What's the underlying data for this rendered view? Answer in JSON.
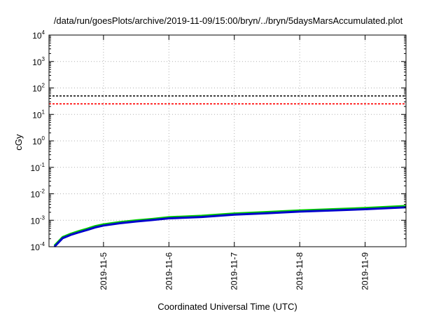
{
  "chart_data": {
    "type": "line",
    "title": "/data/run/goesPlots/archive/2019-11-09/15:00/bryn/../bryn/5daysMarsAccumulated.plot",
    "xlabel": "Coordinated Universal Time (UTC)",
    "ylabel": "cGy",
    "y_scale": "log",
    "grid": true,
    "xlim": [
      "2019-11-04T04:00",
      "2019-11-09T15:00"
    ],
    "ylim": [
      0.0001,
      10000
    ],
    "x_tick_labels": [
      "2019-11-5",
      "2019-11-6",
      "2019-11-7",
      "2019-11-8",
      "2019-11-9"
    ],
    "x_ticks": [
      "2019-11-05T00:00",
      "2019-11-06T00:00",
      "2019-11-07T00:00",
      "2019-11-08T00:00",
      "2019-11-09T00:00"
    ],
    "y_ticks": [
      {
        "value": 0.0001,
        "base": "10",
        "exp": "-4"
      },
      {
        "value": 0.001,
        "base": "10",
        "exp": "-3"
      },
      {
        "value": 0.01,
        "base": "10",
        "exp": "-2"
      },
      {
        "value": 0.1,
        "base": "10",
        "exp": "-1"
      },
      {
        "value": 1,
        "base": "10",
        "exp": "0"
      },
      {
        "value": 10,
        "base": "10",
        "exp": "1"
      },
      {
        "value": 100,
        "base": "10",
        "exp": "2"
      },
      {
        "value": 1000,
        "base": "10",
        "exp": "3"
      },
      {
        "value": 10000,
        "base": "10",
        "exp": "4"
      }
    ],
    "reference_lines": [
      {
        "value": 50,
        "color": "#000000",
        "style": "dashed"
      },
      {
        "value": 25,
        "color": "#ff0000",
        "style": "dashed"
      }
    ],
    "series": [
      {
        "color": "#00cc00",
        "x": [
          "2019-11-04T06:00",
          "2019-11-04T09:00",
          "2019-11-04T12:00",
          "2019-11-04T15:00",
          "2019-11-04T18:00",
          "2019-11-04T21:00",
          "2019-11-05T00:00",
          "2019-11-05T06:00",
          "2019-11-05T12:00",
          "2019-11-05T18:00",
          "2019-11-06T00:00",
          "2019-11-06T12:00",
          "2019-11-07T00:00",
          "2019-11-07T12:00",
          "2019-11-08T00:00",
          "2019-11-08T12:00",
          "2019-11-09T00:00",
          "2019-11-09T15:00"
        ],
        "y": [
          0.00011,
          0.00023,
          0.00031,
          0.00039,
          0.00048,
          0.0006,
          0.0007,
          0.00085,
          0.00099,
          0.00112,
          0.0013,
          0.00147,
          0.0018,
          0.00205,
          0.00235,
          0.00262,
          0.0029,
          0.00345
        ]
      },
      {
        "color": "#0000cc",
        "x": [
          "2019-11-04T06:00",
          "2019-11-04T09:00",
          "2019-11-04T12:00",
          "2019-11-04T15:00",
          "2019-11-04T18:00",
          "2019-11-04T21:00",
          "2019-11-05T00:00",
          "2019-11-05T06:00",
          "2019-11-05T12:00",
          "2019-11-05T18:00",
          "2019-11-06T00:00",
          "2019-11-06T12:00",
          "2019-11-07T00:00",
          "2019-11-07T12:00",
          "2019-11-08T00:00",
          "2019-11-08T12:00",
          "2019-11-09T00:00",
          "2019-11-09T15:00"
        ],
        "y": [
          0.0001,
          0.00021,
          0.00028,
          0.00035,
          0.00043,
          0.00054,
          0.00063,
          0.00077,
          0.0009,
          0.00102,
          0.00118,
          0.00133,
          0.00163,
          0.00185,
          0.00212,
          0.00236,
          0.00262,
          0.0031
        ]
      }
    ]
  }
}
